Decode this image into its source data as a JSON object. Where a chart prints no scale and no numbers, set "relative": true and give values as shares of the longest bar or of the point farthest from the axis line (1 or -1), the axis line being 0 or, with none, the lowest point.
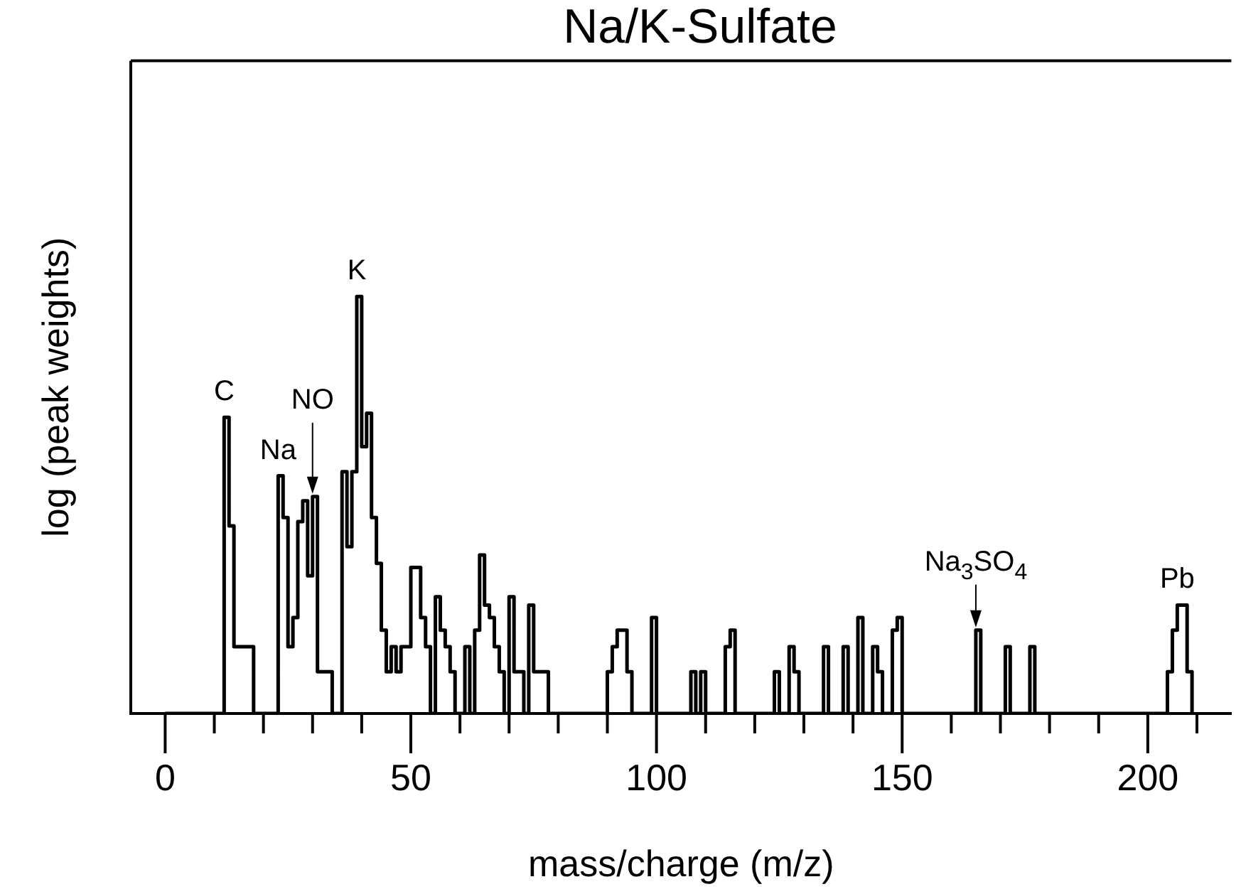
{
  "chart_data": {
    "type": "step",
    "title": "Na/K-Sulfate",
    "xlabel": "mass/charge (m/z)",
    "ylabel": "log (peak weights)",
    "relative": true,
    "grid": false,
    "legend": false,
    "marker": "none",
    "xlim": [
      -7,
      217
    ],
    "xticks": [
      0,
      {
        "value": 10,
        "label": null
      },
      {
        "value": 20,
        "label": null
      },
      {
        "value": 30,
        "label": null
      },
      {
        "value": 40,
        "label": null
      },
      50,
      {
        "value": 60,
        "label": null
      },
      {
        "value": 70,
        "label": null
      },
      {
        "value": 80,
        "label": null
      },
      {
        "value": 90,
        "label": null
      },
      100,
      {
        "value": 110,
        "label": null
      },
      {
        "value": 120,
        "label": null
      },
      {
        "value": 130,
        "label": null
      },
      {
        "value": 140,
        "label": null
      },
      150,
      {
        "value": 160,
        "label": null
      },
      {
        "value": 170,
        "label": null
      },
      {
        "value": 180,
        "label": null
      },
      {
        "value": 190,
        "label": null
      },
      200,
      {
        "value": 210,
        "label": null
      }
    ],
    "series": [
      {
        "color": "#000000",
        "x": [
          0,
          12,
          13,
          14,
          18,
          23,
          24,
          25,
          26,
          27,
          28,
          29,
          30,
          31,
          34,
          36,
          37,
          38,
          39,
          40,
          41,
          42,
          43,
          44,
          45,
          46,
          47,
          48,
          50,
          52,
          53,
          54,
          55,
          56,
          57,
          58,
          59,
          61,
          62,
          63,
          64,
          65,
          66,
          67,
          68,
          69,
          70,
          71,
          73,
          74,
          75,
          78,
          90,
          91,
          92,
          94,
          95,
          99,
          100,
          107,
          108,
          109,
          110,
          114,
          115,
          116,
          124,
          125,
          127,
          128,
          129,
          134,
          135,
          138,
          139,
          141,
          142,
          144,
          145,
          146,
          148,
          149,
          150,
          165,
          166,
          171,
          172,
          176,
          177,
          204,
          205,
          206,
          208,
          209
        ],
        "values": [
          0,
          0.71,
          0.45,
          0.16,
          0,
          0.57,
          0.47,
          0.16,
          0.23,
          0.46,
          0.51,
          0.33,
          0.52,
          0.1,
          0,
          0.58,
          0.4,
          0.58,
          1,
          0.64,
          0.72,
          0.47,
          0.36,
          0.2,
          0.1,
          0.16,
          0.1,
          0.16,
          0.35,
          0.23,
          0.16,
          0,
          0.28,
          0.2,
          0.16,
          0.1,
          0,
          0.16,
          0,
          0.2,
          0.38,
          0.26,
          0.23,
          0.16,
          0.1,
          0,
          0.28,
          0.1,
          0,
          0.26,
          0.1,
          0,
          0.1,
          0.16,
          0.2,
          0.1,
          0,
          0.23,
          0,
          0.1,
          0,
          0.1,
          0,
          0.16,
          0.2,
          0,
          0.1,
          0,
          0.16,
          0.1,
          0,
          0.16,
          0,
          0.16,
          0,
          0.23,
          0,
          0.16,
          0.1,
          0,
          0.2,
          0.23,
          0,
          0.2,
          0,
          0.16,
          0,
          0.16,
          0,
          0.1,
          0.2,
          0.26,
          0.1,
          0
        ]
      }
    ],
    "annotations": [
      {
        "text": "C",
        "x": 12,
        "y": 0.71
      },
      {
        "text": "Na",
        "x": 23,
        "y": 0.57
      },
      {
        "text": "NO",
        "x": 30,
        "y": 0.52
      },
      {
        "text": "K",
        "x": 39,
        "y": 1
      },
      {
        "text": "Na$_{3}$SO$_{4}$",
        "x": 165,
        "y": 0.2
      },
      {
        "text": "Pb",
        "x": 206,
        "y": 0.26
      }
    ]
  }
}
